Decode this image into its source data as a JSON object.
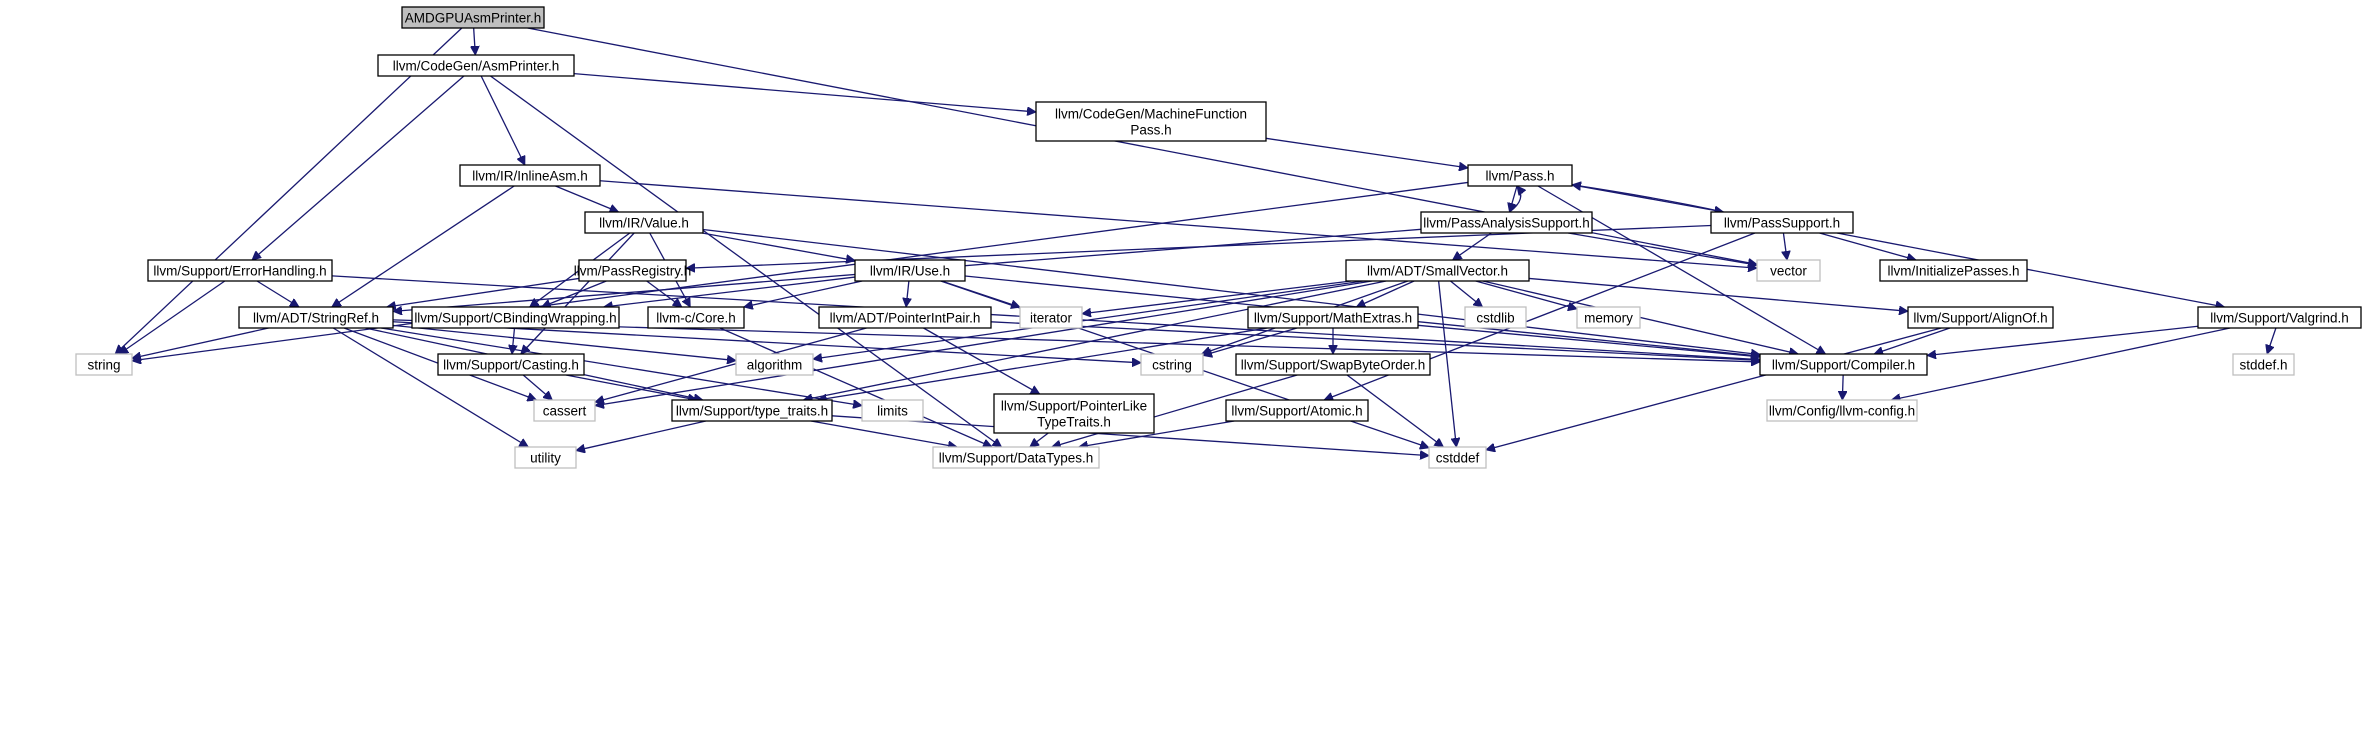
{
  "graph": {
    "title": "AMDGPUAsmPrinter.h",
    "nodes": [
      {
        "id": "root",
        "label": "AMDGPUAsmPrinter.h",
        "kind": "root"
      },
      {
        "id": "asmprinter",
        "label": "llvm/CodeGen/AsmPrinter.h",
        "kind": "normal"
      },
      {
        "id": "mfp",
        "label": "llvm/CodeGen/MachineFunction\nPass.h",
        "kind": "normal"
      },
      {
        "id": "pass",
        "label": "llvm/Pass.h",
        "kind": "normal"
      },
      {
        "id": "inlineasm",
        "label": "llvm/IR/InlineAsm.h",
        "kind": "normal"
      },
      {
        "id": "value",
        "label": "llvm/IR/Value.h",
        "kind": "normal"
      },
      {
        "id": "pas",
        "label": "llvm/PassAnalysisSupport.h",
        "kind": "normal"
      },
      {
        "id": "passsupport",
        "label": "llvm/PassSupport.h",
        "kind": "normal"
      },
      {
        "id": "vector",
        "label": "vector",
        "kind": "external"
      },
      {
        "id": "initpasses",
        "label": "llvm/InitializePasses.h",
        "kind": "normal"
      },
      {
        "id": "errhandling",
        "label": "llvm/Support/ErrorHandling.h",
        "kind": "normal"
      },
      {
        "id": "passregistry",
        "label": "llvm/PassRegistry.h",
        "kind": "normal"
      },
      {
        "id": "use",
        "label": "llvm/IR/Use.h",
        "kind": "normal"
      },
      {
        "id": "smallvector",
        "label": "llvm/ADT/SmallVector.h",
        "kind": "normal"
      },
      {
        "id": "stringref",
        "label": "llvm/ADT/StringRef.h",
        "kind": "normal"
      },
      {
        "id": "cbinding",
        "label": "llvm/Support/CBindingWrapping.h",
        "kind": "normal"
      },
      {
        "id": "ccore",
        "label": "llvm-c/Core.h",
        "kind": "normal"
      },
      {
        "id": "pointerintpair",
        "label": "llvm/ADT/PointerIntPair.h",
        "kind": "normal"
      },
      {
        "id": "iterator",
        "label": "iterator",
        "kind": "external"
      },
      {
        "id": "mathextras",
        "label": "llvm/Support/MathExtras.h",
        "kind": "normal"
      },
      {
        "id": "cstdlib",
        "label": "cstdlib",
        "kind": "external"
      },
      {
        "id": "memory",
        "label": "memory",
        "kind": "external"
      },
      {
        "id": "alignof",
        "label": "llvm/Support/AlignOf.h",
        "kind": "normal"
      },
      {
        "id": "valgrind",
        "label": "llvm/Support/Valgrind.h",
        "kind": "normal"
      },
      {
        "id": "string",
        "label": "string",
        "kind": "external"
      },
      {
        "id": "casting",
        "label": "llvm/Support/Casting.h",
        "kind": "normal"
      },
      {
        "id": "algorithm",
        "label": "algorithm",
        "kind": "external"
      },
      {
        "id": "cstring",
        "label": "cstring",
        "kind": "external"
      },
      {
        "id": "swapbyteorder",
        "label": "llvm/Support/SwapByteOrder.h",
        "kind": "normal"
      },
      {
        "id": "compiler",
        "label": "llvm/Support/Compiler.h",
        "kind": "normal"
      },
      {
        "id": "stddef",
        "label": "stddef.h",
        "kind": "external"
      },
      {
        "id": "cassert",
        "label": "cassert",
        "kind": "external"
      },
      {
        "id": "typetraits",
        "label": "llvm/Support/type_traits.h",
        "kind": "normal"
      },
      {
        "id": "limits",
        "label": "limits",
        "kind": "external"
      },
      {
        "id": "ptrliketypetraits",
        "label": "llvm/Support/PointerLike\nTypeTraits.h",
        "kind": "normal"
      },
      {
        "id": "atomic",
        "label": "llvm/Support/Atomic.h",
        "kind": "normal"
      },
      {
        "id": "llvmconfig",
        "label": "llvm/Config/llvm-config.h",
        "kind": "external"
      },
      {
        "id": "utility",
        "label": "utility",
        "kind": "external"
      },
      {
        "id": "datatypes",
        "label": "llvm/Support/DataTypes.h",
        "kind": "external"
      },
      {
        "id": "cstddef",
        "label": "cstddef",
        "kind": "external"
      }
    ],
    "edges": [
      [
        "root",
        "asmprinter"
      ],
      [
        "root",
        "string"
      ],
      [
        "root",
        "vector"
      ],
      [
        "asmprinter",
        "mfp"
      ],
      [
        "asmprinter",
        "inlineasm"
      ],
      [
        "asmprinter",
        "errhandling"
      ],
      [
        "asmprinter",
        "datatypes"
      ],
      [
        "mfp",
        "pass"
      ],
      [
        "pass",
        "pas"
      ],
      [
        "pass",
        "passsupport"
      ],
      [
        "pass",
        "string"
      ],
      [
        "pass",
        "compiler"
      ],
      [
        "pas",
        "pass"
      ],
      [
        "pas",
        "smallvector"
      ],
      [
        "pas",
        "stringref"
      ],
      [
        "pas",
        "vector"
      ],
      [
        "passsupport",
        "pass"
      ],
      [
        "passsupport",
        "passregistry"
      ],
      [
        "passsupport",
        "initpasses"
      ],
      [
        "passsupport",
        "vector"
      ],
      [
        "passsupport",
        "valgrind"
      ],
      [
        "passsupport",
        "atomic"
      ],
      [
        "inlineasm",
        "value"
      ],
      [
        "inlineasm",
        "stringref"
      ],
      [
        "inlineasm",
        "vector"
      ],
      [
        "value",
        "use"
      ],
      [
        "value",
        "cbinding"
      ],
      [
        "value",
        "ccore"
      ],
      [
        "value",
        "casting"
      ],
      [
        "value",
        "compiler"
      ],
      [
        "errhandling",
        "stringref"
      ],
      [
        "errhandling",
        "compiler"
      ],
      [
        "errhandling",
        "string"
      ],
      [
        "passregistry",
        "stringref"
      ],
      [
        "passregistry",
        "cbinding"
      ],
      [
        "passregistry",
        "ccore"
      ],
      [
        "use",
        "pointerintpair"
      ],
      [
        "use",
        "iterator"
      ],
      [
        "use",
        "cbinding"
      ],
      [
        "use",
        "ccore"
      ],
      [
        "use",
        "compiler"
      ],
      [
        "use",
        "cstddef"
      ],
      [
        "smallvector",
        "mathextras"
      ],
      [
        "smallvector",
        "alignof"
      ],
      [
        "smallvector",
        "compiler"
      ],
      [
        "smallvector",
        "algorithm"
      ],
      [
        "smallvector",
        "cassert"
      ],
      [
        "smallvector",
        "cstddef"
      ],
      [
        "smallvector",
        "cstdlib"
      ],
      [
        "smallvector",
        "cstring"
      ],
      [
        "smallvector",
        "iterator"
      ],
      [
        "smallvector",
        "memory"
      ],
      [
        "smallvector",
        "typetraits"
      ],
      [
        "stringref",
        "string"
      ],
      [
        "stringref",
        "algorithm"
      ],
      [
        "stringref",
        "cassert"
      ],
      [
        "stringref",
        "cstring"
      ],
      [
        "stringref",
        "limits"
      ],
      [
        "stringref",
        "utility"
      ],
      [
        "stringref",
        "typetraits"
      ],
      [
        "stringref",
        "compiler"
      ],
      [
        "cbinding",
        "casting"
      ],
      [
        "ccore",
        "datatypes"
      ],
      [
        "pointerintpair",
        "ptrliketypetraits"
      ],
      [
        "pointerintpair",
        "compiler"
      ],
      [
        "pointerintpair",
        "cassert"
      ],
      [
        "mathextras",
        "swapbyteorder"
      ],
      [
        "mathextras",
        "compiler"
      ],
      [
        "mathextras",
        "cstring"
      ],
      [
        "mathextras",
        "typetraits"
      ],
      [
        "alignof",
        "compiler"
      ],
      [
        "alignof",
        "cstddef"
      ],
      [
        "valgrind",
        "compiler"
      ],
      [
        "valgrind",
        "stddef"
      ],
      [
        "valgrind",
        "llvmconfig"
      ],
      [
        "casting",
        "typetraits"
      ],
      [
        "casting",
        "cassert"
      ],
      [
        "swapbyteorder",
        "datatypes"
      ],
      [
        "swapbyteorder",
        "cstddef"
      ],
      [
        "compiler",
        "llvmconfig"
      ],
      [
        "typetraits",
        "datatypes"
      ],
      [
        "typetraits",
        "utility"
      ],
      [
        "typetraits",
        "cstddef"
      ],
      [
        "ptrliketypetraits",
        "datatypes"
      ],
      [
        "atomic",
        "datatypes"
      ]
    ]
  }
}
